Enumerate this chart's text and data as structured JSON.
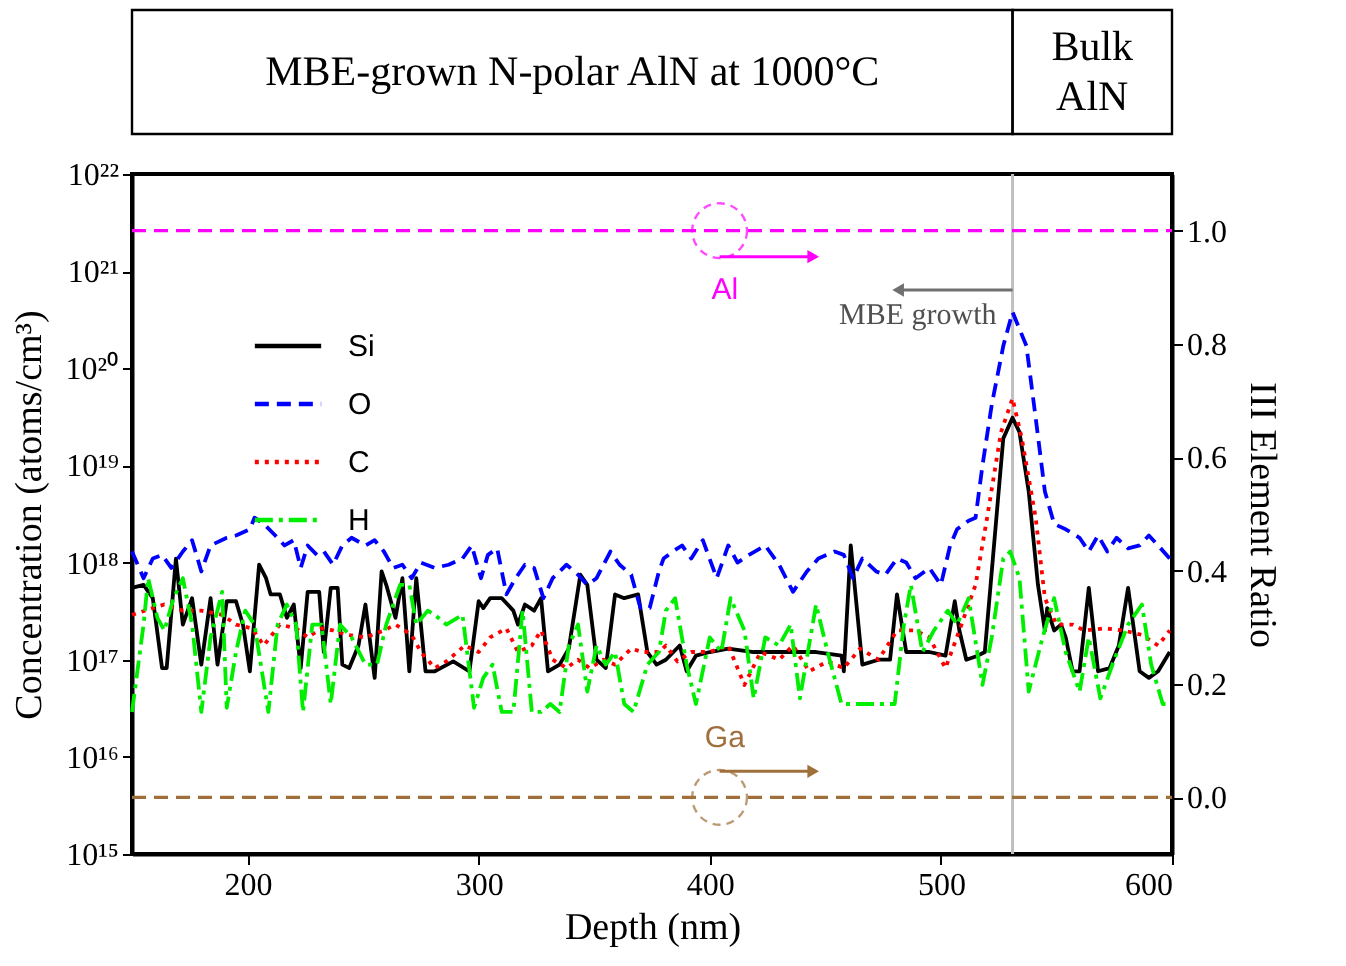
{
  "chart_data": {
    "type": "line",
    "xlabel": "Depth (nm)",
    "ylabel": "Concentration (atoms/cm³)",
    "y2label": "III Element Ratio",
    "log": "y",
    "legend": "top left",
    "xlim": [
      150,
      600
    ],
    "xticks": [
      200,
      300,
      400,
      500,
      600
    ],
    "ylim": [
      1000000000000000.0,
      1e+22
    ],
    "yticks": [
      {
        "value": 1000000000000000.0,
        "label": "10¹⁵"
      },
      {
        "value": 1e+16,
        "label": "10¹⁶"
      },
      {
        "value": 1e+17,
        "label": "10¹⁷"
      },
      {
        "value": 1e+18,
        "label": "10¹⁸"
      },
      {
        "value": 1e+19,
        "label": "10¹⁹"
      },
      {
        "value": 1e+20,
        "label": "10²⁰"
      },
      {
        "value": 1e+21,
        "label": "10²¹"
      },
      {
        "value": 1e+22,
        "label": "10²²"
      }
    ],
    "y2lim": [
      -0.1,
      1.1
    ],
    "y2ticks": [
      {
        "value": 0,
        "label": "0.0"
      },
      {
        "value": 0.2,
        "label": "0.2"
      },
      {
        "value": 0.4,
        "label": "0.4"
      },
      {
        "value": 0.6,
        "label": "0.6"
      },
      {
        "value": 0.8,
        "label": "0.8"
      },
      {
        "value": 1,
        "label": "1.0"
      }
    ],
    "series": [
      {
        "name": "Si",
        "color": "#000000",
        "line_style": "solid",
        "x": [
          150,
          155,
          159,
          163,
          165,
          169,
          172,
          176,
          180,
          184,
          187,
          191,
          195,
          198,
          201,
          205,
          208,
          210,
          214,
          217,
          220,
          223,
          226,
          231,
          233,
          236,
          239,
          241,
          244,
          248,
          251,
          255,
          258,
          260,
          264,
          267,
          270,
          273,
          277,
          281,
          289,
          296,
          300,
          302,
          305,
          310,
          315,
          317,
          320,
          324,
          327,
          330,
          335,
          339,
          344,
          347,
          351,
          355,
          359,
          363,
          369,
          373,
          377,
          381,
          387,
          390,
          394,
          400,
          408,
          419,
          432,
          446,
          457,
          458,
          461,
          466,
          473,
          478,
          481,
          485,
          495,
          502,
          506,
          508,
          511,
          516,
          519,
          525,
          527,
          531,
          534,
          538,
          542,
          545,
          546,
          549,
          552,
          554,
          557,
          560,
          564,
          568,
          573,
          577,
          581,
          586,
          590,
          594,
          599
        ],
        "values": [
          5.5e+17,
          5.9e+17,
          4.3e+17,
          8.2e+16,
          8.2e+16,
          1.1e+18,
          2.3e+17,
          4.3e+17,
          8.9e+16,
          4.3e+17,
          8.9e+16,
          4e+17,
          4e+17,
          2.3e+17,
          7.6e+16,
          9.5e+17,
          6.9e+17,
          4.7e+17,
          4.7e+17,
          2.7e+17,
          3.7e+17,
          8.2e+16,
          5e+17,
          5e+17,
          1.2e+17,
          5.5e+17,
          5.5e+17,
          8.9e+16,
          8.2e+16,
          1.4e+17,
          3.7e+17,
          6.5e+16,
          8.1e+17,
          5.9e+17,
          2.7e+17,
          6.9e+17,
          7.6e+16,
          6.9e+17,
          7.6e+16,
          7.6e+16,
          9.6e+16,
          7.6e+16,
          4e+17,
          3.4e+17,
          4.3e+17,
          4.3e+17,
          3.2e+17,
          2.3e+17,
          3.7e+17,
          3.2e+17,
          4.3e+17,
          7.6e+16,
          8.9e+16,
          1.3e+17,
          7.5e+17,
          5.9e+17,
          1e+17,
          8.2e+16,
          4.7e+17,
          4.3e+17,
          4.7e+17,
          1.2e+17,
          8.9e+16,
          1e+17,
          1.4e+17,
          7.6e+16,
          1.1e+17,
          1.2e+17,
          1.3e+17,
          1.2e+17,
          1.2e+17,
          1.2e+17,
          1.1e+17,
          7.6e+16,
          1.5e+18,
          8.9e+16,
          1e+17,
          1e+17,
          4.7e+17,
          1.2e+17,
          1.2e+17,
          1.1e+17,
          4e+17,
          2e+17,
          1e+17,
          1.1e+17,
          1.2e+17,
          5.4e+18,
          1.9e+19,
          3.1e+19,
          2.2e+19,
          5.4e+18,
          5.9e+17,
          2e+17,
          3.4e+17,
          2e+17,
          2.3e+17,
          1.7e+17,
          7.6e+16,
          7.6e+16,
          5.5e+17,
          7.6e+16,
          8.2e+16,
          1.4e+17,
          5.5e+17,
          7.6e+16,
          6.5e+16,
          7.6e+16,
          1.2e+17
        ]
      },
      {
        "name": "O",
        "color": "#0000ff",
        "line_style": "dashed",
        "x": [
          150,
          155,
          159,
          163,
          167,
          172,
          176,
          180,
          184,
          191,
          195,
          201,
          203,
          207,
          212,
          216,
          220,
          223,
          226,
          230,
          233,
          237,
          241,
          245,
          251,
          255,
          259,
          263,
          267,
          271,
          275,
          281,
          287,
          293,
          297,
          301,
          304,
          308,
          312,
          316,
          320,
          324,
          328,
          332,
          338,
          343,
          347,
          351,
          357,
          361,
          366,
          370,
          374,
          378,
          380,
          384,
          388,
          392,
          397,
          403,
          408,
          412,
          417,
          424,
          430,
          436,
          442,
          447,
          454,
          458,
          462,
          466,
          472,
          476,
          481,
          485,
          489,
          495,
          500,
          504,
          507,
          512,
          515,
          518,
          522,
          527,
          531,
          537,
          541,
          545,
          549,
          554,
          560,
          564,
          568,
          572,
          576,
          581,
          586,
          590,
          594,
          599
        ],
        "values": [
          1.3e+18,
          6.9e+17,
          1.1e+18,
          1.2e+18,
          8.8e+17,
          1.3e+18,
          1.7e+18,
          8.1e+17,
          1.5e+18,
          1.8e+18,
          1.9e+18,
          2.2e+18,
          2.9e+18,
          2.5e+18,
          1.9e+18,
          1.5e+18,
          1.7e+18,
          8.8e+17,
          1.5e+18,
          1.2e+18,
          1.3e+18,
          9.5e+17,
          1.5e+18,
          1.8e+18,
          1.5e+18,
          1.7e+18,
          1.3e+18,
          8.8e+17,
          9.5e+17,
          6.9e+17,
          1e+18,
          8.8e+17,
          9.5e+17,
          1.1e+18,
          1.5e+18,
          6.9e+17,
          1.2e+18,
          1.4e+18,
          4.7e+17,
          6.9e+17,
          9.5e+17,
          8.8e+17,
          4.3e+17,
          6.9e+17,
          9.5e+17,
          7.5e+17,
          5.9e+17,
          6.9e+17,
          1.3e+18,
          9.5e+17,
          7.5e+17,
          3.4e+17,
          3.4e+17,
          8.1e+17,
          1.1e+18,
          1.3e+18,
          1.5e+18,
          1.1e+18,
          1.7e+18,
          6.9e+17,
          1.5e+18,
          1e+18,
          1.2e+18,
          1.5e+18,
          9.5e+17,
          5e+17,
          8.1e+17,
          1.1e+18,
          1.3e+18,
          1.2e+18,
          6.9e+17,
          1.1e+18,
          8.1e+17,
          7.5e+17,
          1.1e+18,
          1e+18,
          6.9e+17,
          8.8e+17,
          5.9e+17,
          1.5e+18,
          2.2e+18,
          2.7e+18,
          2.9e+18,
          1e+19,
          4.2e+19,
          1.7e+20,
          3.8e+20,
          1.7e+20,
          3.1e+19,
          5.4e+18,
          2.5e+18,
          2.2e+18,
          1.8e+18,
          1.3e+18,
          1.9e+18,
          1.3e+18,
          1.8e+18,
          1.4e+18,
          1.5e+18,
          1.9e+18,
          1.5e+18,
          1.1e+18
        ]
      },
      {
        "name": "C",
        "color": "#ff0000",
        "line_style": "dotted",
        "x": [
          150,
          159,
          164,
          172,
          180,
          189,
          195,
          202,
          207,
          214,
          221,
          226,
          232,
          237,
          243,
          251,
          259,
          264,
          271,
          275,
          281,
          286,
          294,
          300,
          305,
          312,
          317,
          323,
          327,
          332,
          338,
          343,
          348,
          354,
          359,
          366,
          371,
          378,
          381,
          386,
          392,
          400,
          408,
          415,
          422,
          430,
          436,
          443,
          451,
          458,
          465,
          473,
          481,
          489,
          495,
          502,
          508,
          515,
          520,
          526,
          531,
          535,
          541,
          545,
          550,
          557,
          562,
          571,
          579,
          587,
          594,
          599
        ],
        "values": [
          2.9e+17,
          3.4e+17,
          3.7e+17,
          3.2e+17,
          3.2e+17,
          2.9e+17,
          2.3e+17,
          2.1e+17,
          1.4e+17,
          2.3e+17,
          2.1e+17,
          1.7e+17,
          2.1e+17,
          2e+17,
          1.8e+17,
          1.7e+17,
          2e+17,
          2.3e+17,
          1.8e+17,
          1.2e+17,
          8.2e+16,
          9.6e+16,
          1.4e+17,
          1.2e+17,
          1.7e+17,
          2.1e+17,
          1.2e+17,
          1.4e+17,
          2e+17,
          1e+17,
          8.2e+16,
          1e+17,
          8.2e+16,
          1e+17,
          8.9e+16,
          1.3e+17,
          1.2e+17,
          1.2e+17,
          1.4e+17,
          9.6e+16,
          1.2e+17,
          1.2e+17,
          1.4e+17,
          5.5e+16,
          1.2e+17,
          1e+17,
          1.4e+17,
          7.6e+16,
          9.6e+16,
          8.2e+16,
          1.3e+17,
          1e+17,
          2e+17,
          2e+17,
          1.7e+17,
          8.2e+16,
          2e+17,
          5.9e+17,
          2.9e+18,
          2.2e+19,
          4.9e+19,
          1.9e+19,
          2.9e+18,
          4.3e+17,
          2.3e+17,
          2.3e+17,
          2e+17,
          2.1e+17,
          2e+17,
          1.8e+17,
          1.4e+17,
          2e+17
        ]
      },
      {
        "name": "H",
        "color": "#00ee00",
        "line_style": "dashdot",
        "x": [
          150,
          155,
          157,
          161,
          164,
          168,
          172,
          176,
          180,
          184,
          189,
          191,
          195,
          199,
          203,
          209,
          213,
          217,
          221,
          224,
          228,
          232,
          236,
          240,
          245,
          251,
          256,
          260,
          266,
          270,
          273,
          278,
          281,
          286,
          293,
          298,
          302,
          306,
          310,
          315,
          319,
          323,
          327,
          331,
          335,
          339,
          343,
          347,
          351,
          355,
          359,
          363,
          367,
          373,
          378,
          381,
          385,
          390,
          394,
          400,
          405,
          409,
          415,
          419,
          424,
          430,
          435,
          439,
          446,
          451,
          457,
          468,
          480,
          484,
          487,
          492,
          497,
          503,
          507,
          512,
          518,
          522,
          527,
          530,
          534,
          538,
          544,
          549,
          554,
          560,
          564,
          569,
          575,
          581,
          587,
          591,
          596,
          599
        ],
        "values": [
          2.9e+16,
          2.3e+17,
          6.9e+17,
          2.7e+17,
          2e+17,
          4.3e+17,
          6.9e+17,
          2.3e+17,
          2.9e+16,
          1.7e+17,
          5e+17,
          3.2e+16,
          1.2e+17,
          3.2e+17,
          2.3e+17,
          2.9e+16,
          2.3e+17,
          3.7e+17,
          2.3e+17,
          2.9e+16,
          2.3e+17,
          2.3e+17,
          3.5e+16,
          2.3e+17,
          1.7e+17,
          8.9e+16,
          8.9e+16,
          2.3e+17,
          5.9e+17,
          5.9e+17,
          2.3e+17,
          3.2e+17,
          2.9e+17,
          2.3e+17,
          2.9e+17,
          3.2e+16,
          6.5e+16,
          8.9e+16,
          2.9e+16,
          2.9e+16,
          3.2e+17,
          2.9e+16,
          2.9e+16,
          3.5e+16,
          2.9e+16,
          1.4e+17,
          2.3e+17,
          4.7e+16,
          1.4e+17,
          8.9e+16,
          1.2e+17,
          3.5e+16,
          2.9e+16,
          8.9e+16,
          1.2e+17,
          3.2e+17,
          4.3e+17,
          8.9e+16,
          3.5e+16,
          1.7e+17,
          1.2e+17,
          4.3e+17,
          2e+17,
          4e+16,
          1.7e+17,
          1.4e+17,
          2.3e+17,
          4e+16,
          3.7e+17,
          1.2e+17,
          3.5e+16,
          3.5e+16,
          3.5e+16,
          2.3e+17,
          5.9e+17,
          1.2e+17,
          2e+17,
          3.2e+17,
          2.3e+17,
          4.3e+17,
          5.5e+16,
          1.7e+17,
          1.1e+18,
          1.3e+18,
          6.9e+17,
          4.7e+16,
          1.7e+17,
          4.3e+17,
          1.2e+17,
          4.7e+16,
          1.7e+17,
          4e+16,
          1e+17,
          2.3e+17,
          3.7e+17,
          8.9e+16,
          3.5e+16,
          3.5e+16
        ]
      },
      {
        "name": "Al",
        "color": "#ff00ff",
        "line_style": "dashed",
        "axis": "y2",
        "x": [
          150,
          600
        ],
        "values": [
          1.0,
          1.0
        ]
      },
      {
        "name": "Ga",
        "color": "#a0703c",
        "line_style": "dashed",
        "axis": "y2",
        "x": [
          150,
          600
        ],
        "values": [
          0.0,
          0.0
        ]
      }
    ],
    "ref_lines": [
      {
        "axis": "x",
        "value": 531,
        "color": "#c0c0c0"
      }
    ],
    "annotations": [
      "MBE-grown N-polar AlN at 1000°C",
      "Bulk\nAlN",
      "MBE growth"
    ]
  }
}
